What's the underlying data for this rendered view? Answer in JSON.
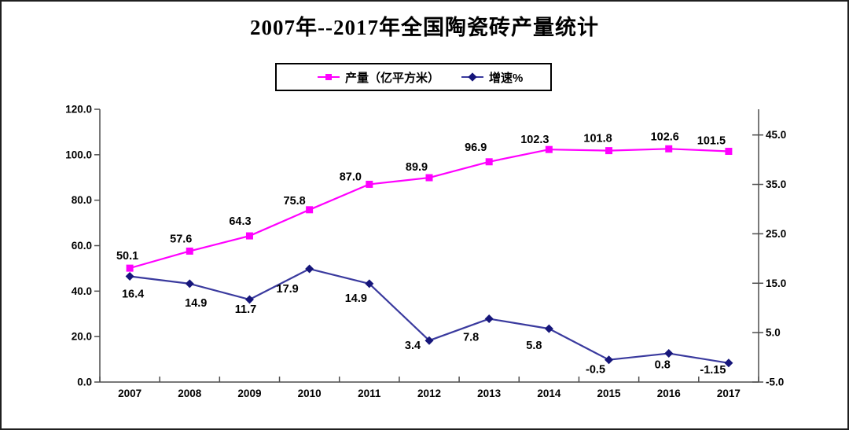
{
  "title": "2007年--2017年全国陶瓷砖产量统计",
  "legend": {
    "items": [
      {
        "label": "产量（亿平方米）",
        "color": "#FF00FF",
        "marker": "square"
      },
      {
        "label": "增速%",
        "color": "#3A3A9E",
        "marker": "diamond"
      }
    ]
  },
  "colors": {
    "production_line": "#FF00FF",
    "growth_line": "#3A3A9E",
    "growth_marker": "#16167A",
    "axis": "#4d4d4d",
    "text": "#000000",
    "background": "#ffffff"
  },
  "chart_data": {
    "type": "line",
    "title": "2007年--2017年全国陶瓷砖产量统计",
    "categories": [
      "2007",
      "2008",
      "2009",
      "2010",
      "2011",
      "2012",
      "2013",
      "2014",
      "2015",
      "2016",
      "2017"
    ],
    "series": [
      {
        "name": "产量（亿平方米）",
        "yaxis": "left",
        "color": "#FF00FF",
        "marker": "square",
        "marker_color": "#FF00FF",
        "values": [
          50.1,
          57.6,
          64.3,
          75.8,
          87.0,
          89.9,
          96.9,
          102.3,
          101.8,
          102.6,
          101.5
        ],
        "labels": [
          "50.1",
          "57.6",
          "64.3",
          "75.8",
          "87.0",
          "89.9",
          "96.9",
          "102.3",
          "101.8",
          "102.6",
          "101.5"
        ]
      },
      {
        "name": "增速%",
        "yaxis": "right",
        "color": "#3A3A9E",
        "marker": "diamond",
        "marker_color": "#16167A",
        "values": [
          16.4,
          14.9,
          11.7,
          17.9,
          14.9,
          3.4,
          7.8,
          5.8,
          -0.5,
          0.8,
          -1.15
        ],
        "labels": [
          "16.4",
          "14.9",
          "11.7",
          "17.9",
          "14.9",
          "3.4",
          "7.8",
          "5.8",
          "-0.5",
          "0.8",
          "-1.15"
        ]
      }
    ],
    "left_axis": {
      "min": 0,
      "max": 120,
      "step": 20,
      "tick_labels": [
        "0.0",
        "20.0",
        "40.0",
        "60.0",
        "80.0",
        "100.0",
        "120.0"
      ]
    },
    "right_axis": {
      "min": -5,
      "tick_max": 45,
      "scale_max": 50.2,
      "step": 10,
      "tick_labels": [
        "-5.0",
        "5.0",
        "15.0",
        "25.0",
        "35.0",
        "45.0"
      ]
    },
    "grid": false,
    "legend_position": "top",
    "label_offsets": {
      "production": [
        [
          -3,
          -11
        ],
        [
          -11,
          -11
        ],
        [
          -12,
          -14
        ],
        [
          -19,
          -7
        ],
        [
          -24,
          -5
        ],
        [
          -16,
          -9
        ],
        [
          -17,
          -14
        ],
        [
          -18,
          -8
        ],
        [
          -14,
          -11
        ],
        [
          -5,
          -11
        ],
        [
          -22,
          -9
        ]
      ],
      "growth": [
        [
          4,
          27
        ],
        [
          8,
          29
        ],
        [
          -5,
          17
        ],
        [
          -28,
          30
        ],
        [
          -17,
          23
        ],
        [
          -21,
          11
        ],
        [
          -23,
          28
        ],
        [
          -19,
          26
        ],
        [
          -17,
          17
        ],
        [
          -8,
          19
        ],
        [
          -20,
          13
        ]
      ]
    }
  }
}
